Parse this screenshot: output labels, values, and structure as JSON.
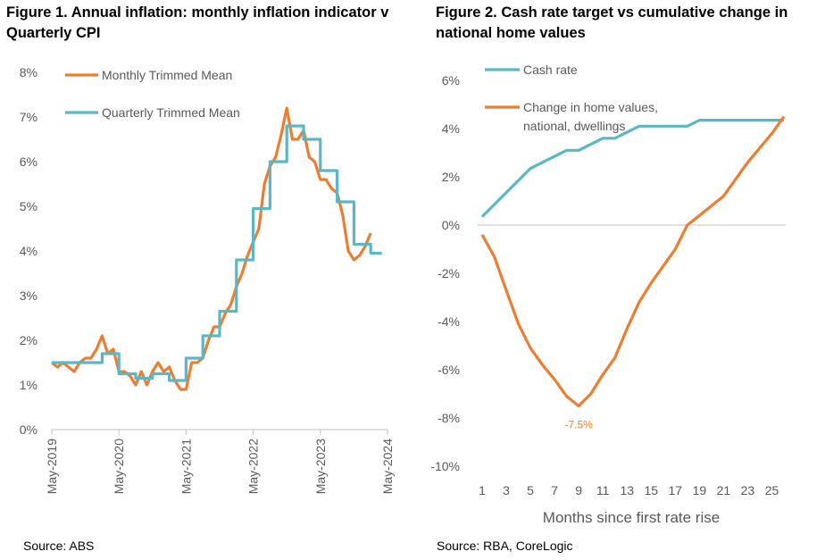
{
  "figure1": {
    "title": "Figure 1. Annual inflation:  monthly inflation indicator v Quarterly CPI",
    "source": "Source: ABS"
  },
  "figure2": {
    "title": "Figure 2. Cash rate target vs cumulative change in national home values",
    "source": "Source: RBA, CoreLogic"
  },
  "colors": {
    "orange": "#ED7D31",
    "teal": "#5BB7C3",
    "axis": "#bfbfbf",
    "text": "#595959"
  },
  "chart_data": [
    {
      "type": "line",
      "ylim": [
        0,
        8
      ],
      "yticks": [
        "0%",
        "1%",
        "2%",
        "3%",
        "4%",
        "5%",
        "6%",
        "7%",
        "8%"
      ],
      "xticks": [
        "May-2019",
        "May-2020",
        "May-2021",
        "May-2022",
        "May-2023",
        "May-2024"
      ],
      "x_start": "2019-05",
      "grid": false,
      "legend_position": "top-left",
      "series": [
        {
          "name": "Monthly Trimmed Mean",
          "color": "#ED7D31",
          "values": [
            1.5,
            1.4,
            1.5,
            1.4,
            1.3,
            1.5,
            1.6,
            1.6,
            1.8,
            2.1,
            1.7,
            1.8,
            1.3,
            1.3,
            1.2,
            1.0,
            1.3,
            1.0,
            1.3,
            1.5,
            1.3,
            1.4,
            1.1,
            0.9,
            0.9,
            1.5,
            1.5,
            1.6,
            2.0,
            2.3,
            2.3,
            2.6,
            2.8,
            3.2,
            3.5,
            3.9,
            4.2,
            4.5,
            5.5,
            5.9,
            6.1,
            6.6,
            7.2,
            6.5,
            6.5,
            6.7,
            6.1,
            6.0,
            5.6,
            5.6,
            5.4,
            5.3,
            4.8,
            4.0,
            3.8,
            3.9,
            4.1,
            4.4
          ]
        },
        {
          "name": "Quarterly Trimmed Mean",
          "color": "#5BB7C3",
          "values": [
            1.5,
            1.5,
            1.5,
            1.5,
            1.5,
            1.5,
            1.5,
            1.5,
            1.5,
            1.7,
            1.7,
            1.7,
            1.25,
            1.25,
            1.25,
            1.15,
            1.15,
            1.15,
            1.25,
            1.25,
            1.25,
            1.1,
            1.1,
            1.1,
            1.6,
            1.6,
            1.6,
            2.1,
            2.1,
            2.1,
            2.65,
            2.65,
            2.65,
            3.8,
            3.8,
            3.8,
            4.95,
            4.95,
            4.95,
            6.0,
            6.0,
            6.0,
            6.8,
            6.8,
            6.8,
            6.5,
            6.5,
            6.5,
            5.8,
            5.8,
            5.8,
            5.1,
            5.1,
            5.1,
            4.15,
            4.15,
            4.15,
            3.95,
            3.95,
            3.95
          ]
        }
      ]
    },
    {
      "type": "line",
      "xlabel": "Months since first rate rise",
      "ylim": [
        -10,
        6
      ],
      "yticks": [
        "6%",
        "4%",
        "2%",
        "0%",
        "-2%",
        "-4%",
        "-6%",
        "-8%",
        "-10%"
      ],
      "xticks": [
        "1",
        "3",
        "5",
        "7",
        "9",
        "11",
        "13",
        "15",
        "17",
        "19",
        "21",
        "23",
        "25"
      ],
      "grid": false,
      "legend_position": "top-left",
      "annotation": {
        "text": "-7.5%",
        "x": 9,
        "y": -7.5
      },
      "series": [
        {
          "name": "Cash rate",
          "color": "#5BB7C3",
          "x": [
            1,
            2,
            3,
            4,
            5,
            6,
            7,
            8,
            9,
            10,
            11,
            12,
            13,
            14,
            15,
            16,
            17,
            18,
            19,
            20,
            21,
            22,
            23,
            24,
            25,
            26
          ],
          "values": [
            0.35,
            0.85,
            1.35,
            1.85,
            2.35,
            2.6,
            2.85,
            3.1,
            3.1,
            3.35,
            3.6,
            3.6,
            3.85,
            4.1,
            4.1,
            4.1,
            4.1,
            4.1,
            4.35,
            4.35,
            4.35,
            4.35,
            4.35,
            4.35,
            4.35,
            4.35
          ]
        },
        {
          "name": "Change in home values, national, dwellings",
          "legend_lines": [
            "Change in home values,",
            "national, dwellings"
          ],
          "color": "#ED7D31",
          "x": [
            1,
            2,
            3,
            4,
            5,
            6,
            7,
            8,
            9,
            10,
            11,
            12,
            13,
            14,
            15,
            16,
            17,
            18,
            19,
            20,
            21,
            22,
            23,
            24,
            25,
            26
          ],
          "values": [
            -0.4,
            -1.3,
            -2.7,
            -4.1,
            -5.1,
            -5.8,
            -6.4,
            -7.1,
            -7.5,
            -7.0,
            -6.2,
            -5.5,
            -4.3,
            -3.2,
            -2.4,
            -1.7,
            -1.0,
            0.0,
            0.4,
            0.8,
            1.2,
            1.9,
            2.6,
            3.2,
            3.8,
            4.5
          ]
        }
      ]
    }
  ]
}
